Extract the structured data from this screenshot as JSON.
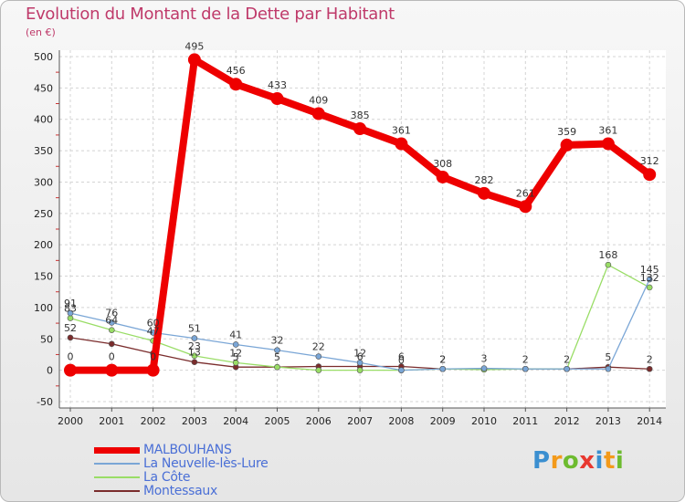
{
  "title": "Evolution du Montant de la Dette par Habitant",
  "unit_label": "(en €)",
  "brand": {
    "letters": [
      "P",
      "r",
      "o",
      "x",
      "i",
      "t",
      "i"
    ],
    "colors": [
      "#3b8fd0",
      "#f39a1a",
      "#6dbb2f",
      "#e8382f",
      "#3b8fd0",
      "#f39a1a",
      "#6dbb2f"
    ]
  },
  "chart_data": {
    "type": "line",
    "x": [
      "2000",
      "2001",
      "2002",
      "2003",
      "2004",
      "2005",
      "2006",
      "2007",
      "2008",
      "2009",
      "2010",
      "2011",
      "2012",
      "2013",
      "2014"
    ],
    "yticks": [
      "500",
      "450",
      "400",
      "350",
      "300",
      "250",
      "200",
      "150",
      "100",
      "50",
      "0",
      "-50"
    ],
    "ylim": [
      -50,
      500
    ],
    "grid": true,
    "series": [
      {
        "name": "MALBOUHANS",
        "color": "#ee0000",
        "values": [
          0,
          0,
          0,
          495,
          456,
          433,
          409,
          385,
          361,
          308,
          282,
          261,
          359,
          361,
          312
        ],
        "labels": [
          "0",
          "0",
          "0",
          "495",
          "456",
          "433",
          "409",
          "385",
          "361",
          "308",
          "282",
          "261",
          "359",
          "361",
          "312"
        ]
      },
      {
        "name": "La Neuvelle-lès-Lure",
        "color": "#7aa6d6",
        "values": [
          91,
          76,
          60,
          51,
          41,
          32,
          22,
          12,
          0,
          2,
          3,
          2,
          2,
          2,
          145
        ],
        "labels": [
          "91",
          "76",
          "60",
          "51",
          "41",
          "32",
          "22",
          "12",
          "0",
          "2",
          "3",
          "2",
          "2",
          "",
          "145"
        ]
      },
      {
        "name": "La Côte",
        "color": "#99dd66",
        "values": [
          83,
          64,
          47,
          23,
          12,
          5,
          0,
          0,
          0,
          2,
          1,
          2,
          2,
          168,
          132
        ],
        "labels": [
          "83",
          "64",
          "47",
          "23",
          "12",
          "5",
          "",
          "",
          "",
          "",
          "",
          "",
          "",
          "168",
          "132"
        ]
      },
      {
        "name": "Montessaux",
        "color": "#7a2c2c",
        "values": [
          52,
          42,
          27,
          13,
          5,
          5,
          6,
          6,
          6,
          2,
          2,
          2,
          2,
          5,
          2
        ],
        "labels": [
          "52",
          "",
          "",
          "13",
          "5",
          "",
          "",
          "6",
          "6",
          "2",
          "",
          "",
          "",
          "5",
          "2"
        ]
      }
    ]
  }
}
